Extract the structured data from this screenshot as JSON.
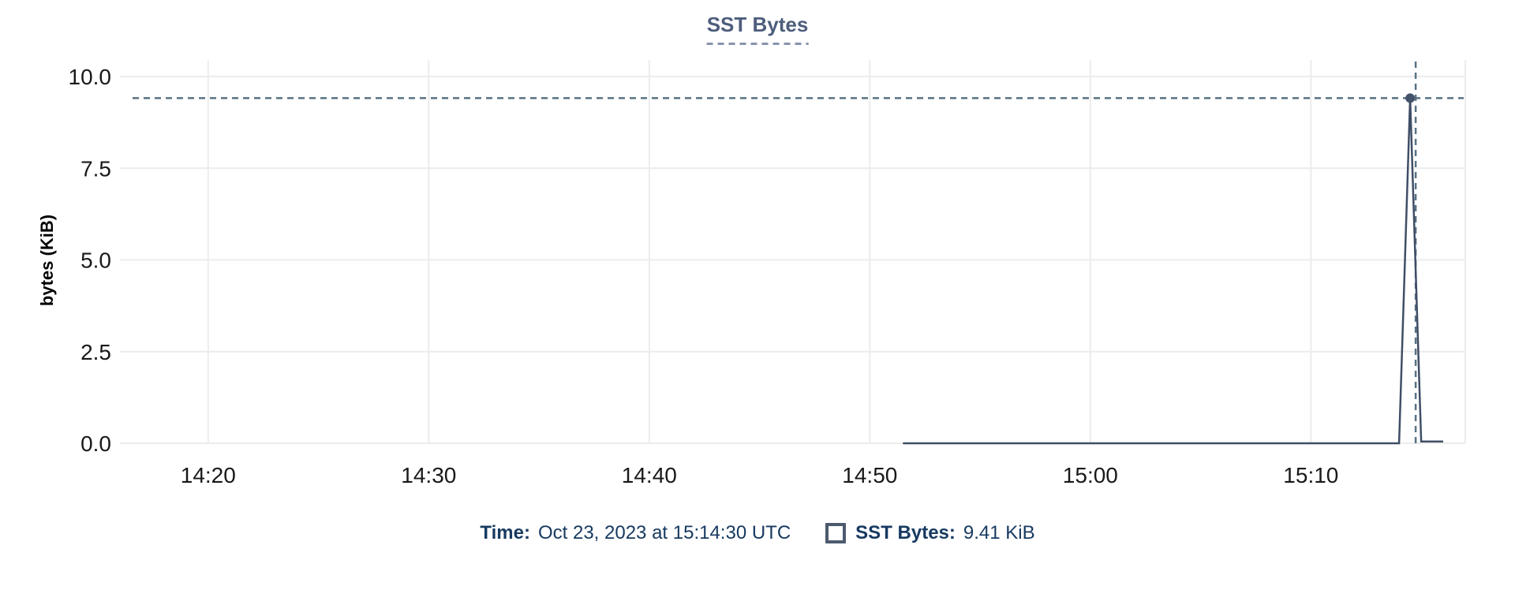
{
  "title": "SST Bytes",
  "y_axis_label": "bytes (KiB)",
  "tooltip": {
    "time_label": "Time:",
    "time_value": "Oct 23, 2023 at 15:14:30 UTC",
    "series_label": "SST Bytes:",
    "series_value": "9.41 KiB"
  },
  "colors": {
    "title_accent": "#4e5d7c",
    "title_underline": "#8893ae",
    "series_line": "#3f4e66",
    "marker_fill": "#44536b",
    "crosshair": "#587284",
    "grid": "#ececec",
    "tick_label": "#191919",
    "tooltip_text": "#173a61",
    "legend_swatch_border": "#4d5a6e"
  },
  "chart_data": {
    "type": "line",
    "title": "SST Bytes",
    "xlabel": "",
    "ylabel": "bytes (KiB)",
    "ylim": [
      0,
      10
    ],
    "x_domain": [
      "14:16:00",
      "15:17:00"
    ],
    "y_ticks": [
      0.0,
      2.5,
      5.0,
      7.5,
      10.0
    ],
    "x_ticks": [
      "14:20",
      "14:30",
      "14:40",
      "14:50",
      "15:00",
      "15:10"
    ],
    "grid": true,
    "legend_position": "bottom",
    "series": [
      {
        "name": "SST Bytes",
        "points": [
          [
            "14:51:30",
            0
          ],
          [
            "15:14:00",
            0
          ],
          [
            "15:14:30",
            9.41
          ],
          [
            "15:15:00",
            0.05
          ],
          [
            "15:16:00",
            0.05
          ]
        ]
      }
    ],
    "highlight": {
      "time": "15:14:30",
      "value": 9.41,
      "value_label": "9.41 KiB",
      "crosshair": true
    }
  }
}
